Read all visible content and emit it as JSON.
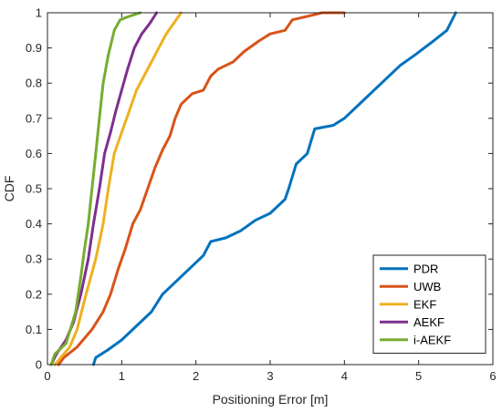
{
  "chart_data": {
    "type": "line",
    "title": "",
    "xlabel": "Positioning Error [m]",
    "ylabel": "CDF",
    "xlim": [
      0,
      6
    ],
    "ylim": [
      0,
      1
    ],
    "xticks": [
      0,
      1,
      2,
      3,
      4,
      5,
      6
    ],
    "yticks": [
      0,
      0.1,
      0.2,
      0.3,
      0.4,
      0.5,
      0.6,
      0.7,
      0.8,
      0.9,
      1
    ],
    "xtick_labels": [
      "0",
      "1",
      "2",
      "3",
      "4",
      "5",
      "6"
    ],
    "ytick_labels": [
      "0",
      "0.1",
      "0.2",
      "0.3",
      "0.4",
      "0.5",
      "0.6",
      "0.7",
      "0.8",
      "0.9",
      "1"
    ],
    "grid": false,
    "legend_position": "bottom-right",
    "series": [
      {
        "name": "PDR",
        "color": "#0072BD",
        "points": [
          [
            0.62,
            0.0
          ],
          [
            0.65,
            0.02
          ],
          [
            0.8,
            0.04
          ],
          [
            1.0,
            0.07
          ],
          [
            1.2,
            0.11
          ],
          [
            1.4,
            0.15
          ],
          [
            1.55,
            0.2
          ],
          [
            1.75,
            0.24
          ],
          [
            1.95,
            0.28
          ],
          [
            2.1,
            0.31
          ],
          [
            2.2,
            0.35
          ],
          [
            2.4,
            0.36
          ],
          [
            2.6,
            0.38
          ],
          [
            2.8,
            0.41
          ],
          [
            3.0,
            0.43
          ],
          [
            3.2,
            0.47
          ],
          [
            3.25,
            0.5
          ],
          [
            3.35,
            0.57
          ],
          [
            3.5,
            0.6
          ],
          [
            3.6,
            0.67
          ],
          [
            3.85,
            0.68
          ],
          [
            4.0,
            0.7
          ],
          [
            4.2,
            0.74
          ],
          [
            4.5,
            0.8
          ],
          [
            4.75,
            0.85
          ],
          [
            4.95,
            0.88
          ],
          [
            5.2,
            0.92
          ],
          [
            5.38,
            0.95
          ],
          [
            5.5,
            1.0
          ]
        ]
      },
      {
        "name": "UWB",
        "color": "#D95319",
        "points": [
          [
            0.15,
            0.0
          ],
          [
            0.22,
            0.02
          ],
          [
            0.4,
            0.05
          ],
          [
            0.6,
            0.1
          ],
          [
            0.75,
            0.15
          ],
          [
            0.85,
            0.2
          ],
          [
            0.95,
            0.27
          ],
          [
            1.05,
            0.33
          ],
          [
            1.15,
            0.4
          ],
          [
            1.25,
            0.44
          ],
          [
            1.35,
            0.5
          ],
          [
            1.45,
            0.56
          ],
          [
            1.55,
            0.61
          ],
          [
            1.65,
            0.65
          ],
          [
            1.72,
            0.7
          ],
          [
            1.8,
            0.74
          ],
          [
            1.95,
            0.77
          ],
          [
            2.1,
            0.78
          ],
          [
            2.2,
            0.82
          ],
          [
            2.3,
            0.84
          ],
          [
            2.5,
            0.86
          ],
          [
            2.65,
            0.89
          ],
          [
            2.85,
            0.92
          ],
          [
            3.0,
            0.94
          ],
          [
            3.2,
            0.95
          ],
          [
            3.3,
            0.98
          ],
          [
            3.5,
            0.99
          ],
          [
            3.7,
            1.0
          ],
          [
            4.0,
            1.0
          ]
        ]
      },
      {
        "name": "EKF",
        "color": "#EDB120",
        "points": [
          [
            0.1,
            0.0
          ],
          [
            0.18,
            0.02
          ],
          [
            0.3,
            0.05
          ],
          [
            0.4,
            0.1
          ],
          [
            0.52,
            0.2
          ],
          [
            0.65,
            0.3
          ],
          [
            0.75,
            0.4
          ],
          [
            0.82,
            0.5
          ],
          [
            0.9,
            0.6
          ],
          [
            1.0,
            0.66
          ],
          [
            1.1,
            0.72
          ],
          [
            1.2,
            0.78
          ],
          [
            1.3,
            0.82
          ],
          [
            1.4,
            0.86
          ],
          [
            1.5,
            0.9
          ],
          [
            1.6,
            0.94
          ],
          [
            1.7,
            0.97
          ],
          [
            1.8,
            1.0
          ]
        ]
      },
      {
        "name": "AEKF",
        "color": "#7E2F8E",
        "points": [
          [
            0.05,
            0.0
          ],
          [
            0.12,
            0.03
          ],
          [
            0.25,
            0.07
          ],
          [
            0.35,
            0.12
          ],
          [
            0.45,
            0.2
          ],
          [
            0.55,
            0.3
          ],
          [
            0.62,
            0.4
          ],
          [
            0.7,
            0.5
          ],
          [
            0.77,
            0.6
          ],
          [
            0.85,
            0.66
          ],
          [
            0.92,
            0.72
          ],
          [
            1.0,
            0.78
          ],
          [
            1.08,
            0.84
          ],
          [
            1.17,
            0.9
          ],
          [
            1.27,
            0.94
          ],
          [
            1.38,
            0.97
          ],
          [
            1.47,
            1.0
          ]
        ]
      },
      {
        "name": "i-AEKF",
        "color": "#77AC30",
        "points": [
          [
            0.05,
            0.0
          ],
          [
            0.1,
            0.03
          ],
          [
            0.25,
            0.06
          ],
          [
            0.38,
            0.15
          ],
          [
            0.45,
            0.25
          ],
          [
            0.5,
            0.33
          ],
          [
            0.55,
            0.4
          ],
          [
            0.6,
            0.5
          ],
          [
            0.65,
            0.6
          ],
          [
            0.7,
            0.7
          ],
          [
            0.75,
            0.8
          ],
          [
            0.82,
            0.88
          ],
          [
            0.9,
            0.95
          ],
          [
            0.98,
            0.98
          ],
          [
            1.1,
            0.99
          ],
          [
            1.25,
            1.0
          ]
        ]
      }
    ]
  }
}
